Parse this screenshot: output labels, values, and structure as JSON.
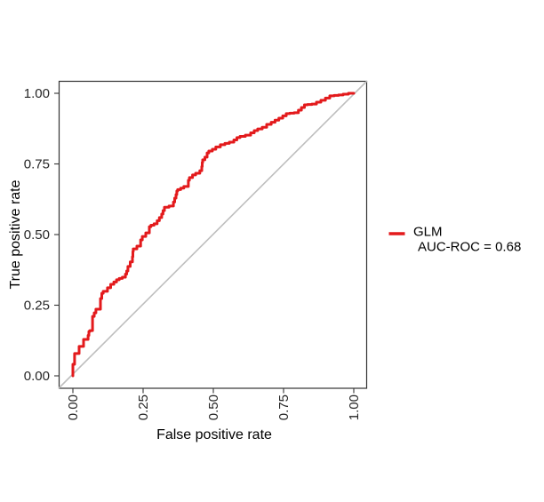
{
  "chart_data": {
    "type": "line",
    "title": "",
    "xlabel": "False positive rate",
    "ylabel": "True positive rate",
    "xlim": [
      0,
      1
    ],
    "ylim": [
      0,
      1
    ],
    "grid": false,
    "legend_position": "right",
    "x_ticks": [
      "0.00",
      "0.25",
      "0.50",
      "0.75",
      "1.00"
    ],
    "y_ticks": [
      "0.00",
      "0.25",
      "0.50",
      "0.75",
      "1.00"
    ],
    "x_tick_values": [
      0,
      0.25,
      0.5,
      0.75,
      1
    ],
    "y_tick_values": [
      0,
      0.25,
      0.5,
      0.75,
      1
    ],
    "x_tick_label_rotation_deg": -90,
    "series": [
      {
        "name": "GLM",
        "auc_roc": 0.68,
        "color": "#e31a1c",
        "curve": "roc-step",
        "points": [
          [
            0.0,
            0.0
          ],
          [
            0.0,
            0.031
          ],
          [
            0.006,
            0.041
          ],
          [
            0.006,
            0.066
          ],
          [
            0.022,
            0.079
          ],
          [
            0.022,
            0.097
          ],
          [
            0.038,
            0.104
          ],
          [
            0.038,
            0.126
          ],
          [
            0.054,
            0.129
          ],
          [
            0.06,
            0.157
          ],
          [
            0.07,
            0.16
          ],
          [
            0.07,
            0.198
          ],
          [
            0.082,
            0.223
          ],
          [
            0.098,
            0.236
          ],
          [
            0.098,
            0.255
          ],
          [
            0.108,
            0.292
          ],
          [
            0.123,
            0.299
          ],
          [
            0.146,
            0.324
          ],
          [
            0.165,
            0.34
          ],
          [
            0.187,
            0.349
          ],
          [
            0.196,
            0.371
          ],
          [
            0.212,
            0.403
          ],
          [
            0.215,
            0.44
          ],
          [
            0.241,
            0.459
          ],
          [
            0.247,
            0.481
          ],
          [
            0.272,
            0.506
          ],
          [
            0.278,
            0.528
          ],
          [
            0.3,
            0.538
          ],
          [
            0.316,
            0.56
          ],
          [
            0.326,
            0.585
          ],
          [
            0.342,
            0.597
          ],
          [
            0.358,
            0.601
          ],
          [
            0.367,
            0.629
          ],
          [
            0.373,
            0.654
          ],
          [
            0.395,
            0.664
          ],
          [
            0.411,
            0.67
          ],
          [
            0.415,
            0.692
          ],
          [
            0.437,
            0.711
          ],
          [
            0.452,
            0.717
          ],
          [
            0.459,
            0.726
          ],
          [
            0.462,
            0.755
          ],
          [
            0.478,
            0.774
          ],
          [
            0.484,
            0.789
          ],
          [
            0.509,
            0.802
          ],
          [
            0.541,
            0.818
          ],
          [
            0.573,
            0.827
          ],
          [
            0.595,
            0.843
          ],
          [
            0.633,
            0.852
          ],
          [
            0.658,
            0.868
          ],
          [
            0.69,
            0.88
          ],
          [
            0.706,
            0.89
          ],
          [
            0.747,
            0.912
          ],
          [
            0.772,
            0.928
          ],
          [
            0.803,
            0.931
          ],
          [
            0.835,
            0.959
          ],
          [
            0.867,
            0.962
          ],
          [
            0.899,
            0.975
          ],
          [
            0.93,
            0.991
          ],
          [
            0.962,
            0.994
          ],
          [
            1.0,
            1.0
          ]
        ]
      }
    ],
    "reference_line": {
      "type": "diagonal",
      "slope": 1,
      "intercept": 0,
      "color": "#bebebe"
    }
  },
  "legend": {
    "line1": "GLM",
    "line2": "AUC-ROC = 0.68",
    "key_color": "#e31a1c"
  },
  "colors": {
    "background": "#ffffff",
    "panel_border": "#333333",
    "tick_mark": "#333333",
    "tick_label": "#262626",
    "axis_title": "#000000",
    "roc_curve": "#e31a1c",
    "diagonal": "#bebebe"
  }
}
